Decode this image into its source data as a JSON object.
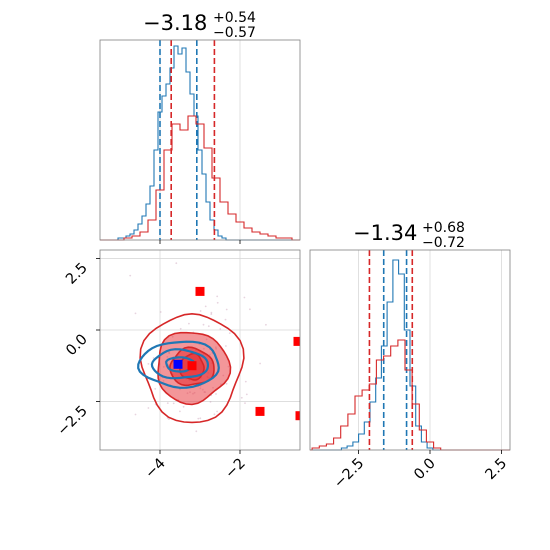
{
  "colors": {
    "blue": "#1f77b4",
    "red": "#d62728",
    "red_fill": "#e8383d",
    "marker_red": "#ff0000",
    "marker_blue": "#0000ff",
    "grid": "#d9d9d9",
    "frame": "#808080"
  },
  "chart_data": [
    {
      "type": "histogram",
      "panel": "param1-marginal",
      "title": {
        "value": "−3.18",
        "plus": "+0.54",
        "minus": "−0.57"
      },
      "xlim": [
        -5.5,
        -0.5
      ],
      "grid": true,
      "series": [
        {
          "color": "blue",
          "quantiles": [
            -4.0,
            -3.08
          ],
          "bins_x": [
            -5.0,
            -4.9,
            -4.8,
            -4.7,
            -4.6,
            -4.5,
            -4.4,
            -4.3,
            -4.2,
            -4.1,
            -4.0,
            -3.9,
            -3.8,
            -3.7,
            -3.6,
            -3.5,
            -3.4,
            -3.3,
            -3.2,
            -3.1,
            -3.0,
            -2.9,
            -2.8,
            -2.7,
            -2.6,
            -2.5,
            -2.4
          ],
          "density": [
            0.01,
            0.01,
            0.02,
            0.03,
            0.05,
            0.08,
            0.12,
            0.18,
            0.27,
            0.45,
            0.64,
            0.72,
            0.78,
            0.86,
            0.97,
            0.93,
            0.96,
            0.84,
            0.73,
            0.62,
            0.45,
            0.33,
            0.19,
            0.1,
            0.05,
            0.02,
            0.01
          ]
        },
        {
          "color": "red",
          "quantiles": [
            -3.72,
            -2.64
          ],
          "bins_x": [
            -4.8,
            -4.6,
            -4.4,
            -4.2,
            -4.0,
            -3.8,
            -3.6,
            -3.4,
            -3.2,
            -3.0,
            -2.8,
            -2.6,
            -2.4,
            -2.2,
            -2.0,
            -1.8,
            -1.6,
            -1.4,
            -1.2,
            -1.0,
            -0.8
          ],
          "density": [
            0.01,
            0.02,
            0.04,
            0.1,
            0.25,
            0.45,
            0.58,
            0.55,
            0.62,
            0.58,
            0.46,
            0.31,
            0.19,
            0.13,
            0.09,
            0.06,
            0.04,
            0.03,
            0.02,
            0.01,
            0.01
          ]
        }
      ],
      "xticks": [
        -4,
        -2
      ]
    },
    {
      "type": "histogram",
      "panel": "param2-marginal",
      "title": {
        "value": "−1.34",
        "plus": "+0.68",
        "minus": "−0.72"
      },
      "xlim": [
        -4.2,
        2.8
      ],
      "grid": true,
      "series": [
        {
          "color": "blue",
          "quantiles": [
            -1.62,
            -0.82
          ],
          "bins_x": [
            -3.0,
            -2.8,
            -2.6,
            -2.4,
            -2.2,
            -2.0,
            -1.8,
            -1.6,
            -1.4,
            -1.2,
            -1.0,
            -0.8,
            -0.6,
            -0.4,
            -0.2,
            0.0
          ],
          "density": [
            0.01,
            0.02,
            0.04,
            0.08,
            0.14,
            0.24,
            0.36,
            0.52,
            0.74,
            0.95,
            0.88,
            0.6,
            0.32,
            0.12,
            0.04,
            0.01
          ]
        },
        {
          "color": "red",
          "quantiles": [
            -2.12,
            -0.62
          ],
          "bins_x": [
            -4.0,
            -3.75,
            -3.5,
            -3.25,
            -3.0,
            -2.75,
            -2.5,
            -2.25,
            -2.0,
            -1.75,
            -1.5,
            -1.25,
            -1.0,
            -0.75,
            -0.5,
            -0.25,
            0.0,
            0.25
          ],
          "density": [
            0.01,
            0.02,
            0.03,
            0.06,
            0.12,
            0.18,
            0.27,
            0.3,
            0.33,
            0.45,
            0.47,
            0.52,
            0.55,
            0.4,
            0.23,
            0.1,
            0.04,
            0.01
          ]
        }
      ],
      "xticks": [
        -2.5,
        0.0,
        2.5
      ],
      "xtick_labels": [
        "−2.5",
        "0.0",
        "2.5"
      ]
    },
    {
      "type": "scatter",
      "panel": "joint",
      "xlim": [
        -5.5,
        -0.5
      ],
      "ylim": [
        -4.2,
        2.8
      ],
      "grid": true,
      "xticks": [
        -4,
        -2
      ],
      "xtick_labels": [
        "−4",
        "−2"
      ],
      "yticks": [
        2.5,
        0.0,
        -2.5
      ],
      "ytick_labels": [
        "2.5",
        "0.0",
        "−2.5"
      ],
      "contours_red": {
        "center": [
          -3.2,
          -1.3
        ],
        "levels": [
          {
            "rx": 0.3,
            "ry": 0.45,
            "fill": 0.95
          },
          {
            "rx": 0.55,
            "ry": 0.65,
            "fill": 0.7
          },
          {
            "rx": 0.9,
            "ry": 1.25,
            "fill": 0.5
          },
          {
            "rx": 1.25,
            "ry": 1.9,
            "fill": 0.0
          }
        ]
      },
      "contours_blue": {
        "center": [
          -3.5,
          -1.2
        ],
        "levels": [
          {
            "rx": 0.35,
            "ry": 0.25
          },
          {
            "rx": 0.7,
            "ry": 0.5
          },
          {
            "rx": 1.0,
            "ry": 0.8
          }
        ]
      },
      "red_points": [
        {
          "x": -3.0,
          "y": 1.35
        },
        {
          "x": -0.55,
          "y": -0.4
        },
        {
          "x": -1.5,
          "y": -2.85
        },
        {
          "x": -0.5,
          "y": -3.0
        },
        {
          "x": -3.2,
          "y": -1.25
        }
      ],
      "blue_points": [
        {
          "x": -3.55,
          "y": -1.2
        }
      ]
    }
  ]
}
